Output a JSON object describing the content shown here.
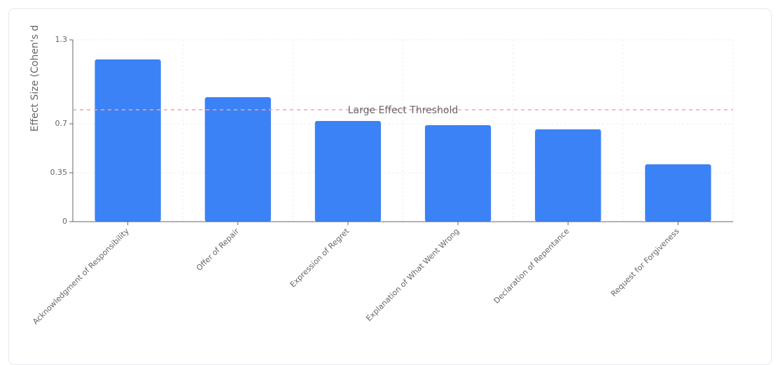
{
  "chart_data": {
    "type": "bar",
    "y_label": "Effect Size (Cohen's d",
    "categories": [
      "Acknowledgment of Responsibility",
      "Offer of Repair",
      "Expression of Regret",
      "Explanation of What Went Wrong",
      "Declaration of Repentance",
      "Request for Forgiveness"
    ],
    "values": [
      1.16,
      0.89,
      0.72,
      0.69,
      0.66,
      0.41
    ],
    "color": "#3b82f6",
    "ylim": [
      0,
      1.3
    ],
    "yticks": [
      0,
      0.35,
      0.7,
      1.3
    ],
    "grid": true,
    "reference_line": {
      "value": 0.8,
      "label": "Large Effect Threshold",
      "color": "#f4a3a3"
    }
  }
}
